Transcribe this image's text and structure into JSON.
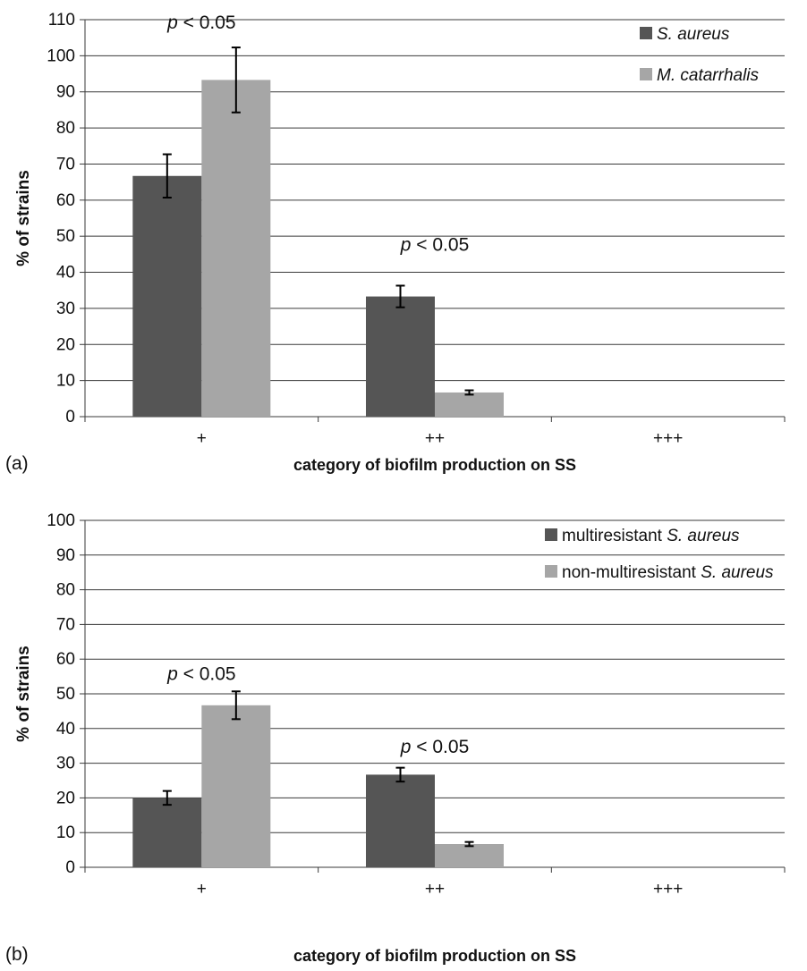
{
  "chart_data": [
    {
      "type": "bar",
      "panel_label": "(a)",
      "categories": [
        "+",
        "++",
        "+++"
      ],
      "series": [
        {
          "name_parts": [
            "",
            "S. aureus",
            ""
          ],
          "color": "#555555",
          "values": [
            66.7,
            33.3,
            0
          ],
          "errors": [
            6.0,
            3.0,
            0
          ]
        },
        {
          "name_parts": [
            "",
            "M. catarrhalis",
            ""
          ],
          "color": "#a6a6a6",
          "values": [
            93.3,
            6.7,
            0
          ],
          "errors": [
            9.0,
            0.6,
            0
          ]
        }
      ],
      "ylabel": "% of strains",
      "xlabel": "category of biofilm production on SS",
      "ylim": [
        0,
        110
      ],
      "yticks": [
        0,
        10,
        20,
        30,
        40,
        50,
        60,
        70,
        80,
        90,
        100,
        110
      ],
      "grid": true,
      "legend_position": "top-right",
      "annotations": [
        {
          "category_index": 0,
          "y": 107.5,
          "italic": "p",
          "text": " < 0.05"
        },
        {
          "category_index": 1,
          "y": 46,
          "italic": "p",
          "text": " < 0.05"
        }
      ]
    },
    {
      "type": "bar",
      "panel_label": "(b)",
      "categories": [
        "+",
        "++",
        "+++"
      ],
      "series": [
        {
          "name_parts": [
            "multiresistant ",
            "S. aureus",
            ""
          ],
          "color": "#555555",
          "values": [
            20,
            26.7,
            0
          ],
          "errors": [
            2.0,
            2.0,
            0
          ]
        },
        {
          "name_parts": [
            "non-multiresistant ",
            "S. aureus",
            ""
          ],
          "color": "#a6a6a6",
          "values": [
            46.7,
            6.7,
            0
          ],
          "errors": [
            4.0,
            0.6,
            0
          ]
        }
      ],
      "ylabel": "% of strains",
      "xlabel": "category of biofilm production on SS",
      "ylim": [
        0,
        100
      ],
      "yticks": [
        0,
        10,
        20,
        30,
        40,
        50,
        60,
        70,
        80,
        90,
        100
      ],
      "grid": true,
      "legend_position": "top-right",
      "annotations": [
        {
          "category_index": 0,
          "y": 54,
          "italic": "p",
          "text": " < 0.05"
        },
        {
          "category_index": 1,
          "y": 33,
          "italic": "p",
          "text": " < 0.05"
        }
      ]
    }
  ]
}
